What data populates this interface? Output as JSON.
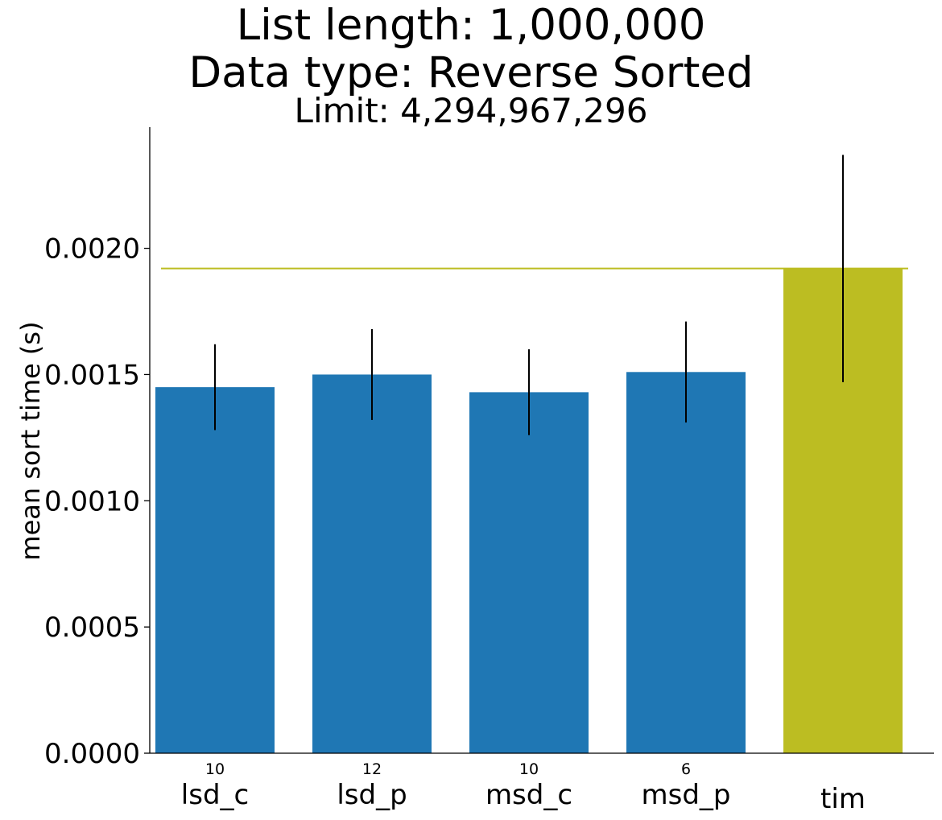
{
  "title_lines": [
    "List length: 1,000,000",
    "Data type: Reverse Sorted",
    "Limit: 4,294,967,296"
  ],
  "chart_data": {
    "type": "bar",
    "categories": [
      "lsd_c",
      "lsd_p",
      "msd_c",
      "msd_p",
      "tim"
    ],
    "values": [
      0.00145,
      0.0015,
      0.00143,
      0.00151,
      0.00192
    ],
    "error": [
      0.00017,
      0.00018,
      0.00017,
      0.0002,
      0.00045
    ],
    "bar_annotations": [
      "10",
      "12",
      "10",
      "6",
      ""
    ],
    "bar_colors": [
      "#1f77b4",
      "#1f77b4",
      "#1f77b4",
      "#1f77b4",
      "#bcbd22"
    ],
    "reference_line": {
      "value": 0.00192,
      "color": "#bcbd22"
    },
    "ylabel": "mean sort time (s)",
    "xlabel": "",
    "ylim": [
      0,
      0.00248
    ],
    "yticks": [
      0,
      0.0005,
      0.001,
      0.0015,
      0.002
    ],
    "ytick_labels": [
      "0.0000",
      "0.0005",
      "0.0010",
      "0.0015",
      "0.0020"
    ],
    "grid": false,
    "legend": "none"
  }
}
